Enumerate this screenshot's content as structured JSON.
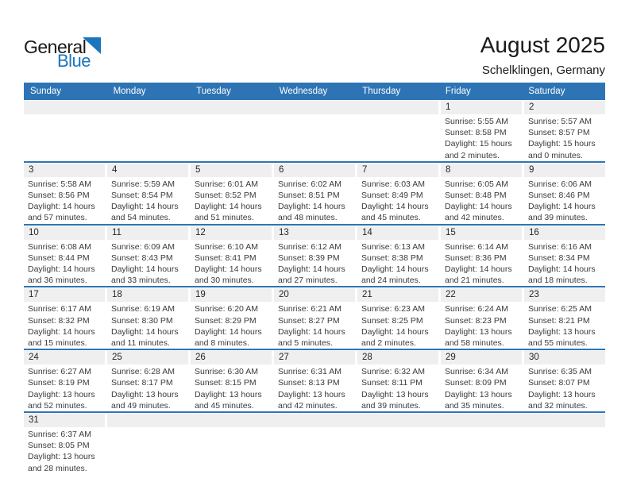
{
  "brand": {
    "part1": "General",
    "part2": "Blue"
  },
  "header": {
    "title": "August 2025",
    "subtitle": "Schelklingen, Germany"
  },
  "colors": {
    "header_bar": "#2e74b5",
    "week_divider": "#2e74b5",
    "date_band": "#efefef",
    "logo_blue": "#1b75bc"
  },
  "weekdays": [
    "Sunday",
    "Monday",
    "Tuesday",
    "Wednesday",
    "Thursday",
    "Friday",
    "Saturday"
  ],
  "weeks": [
    {
      "leading_empty": 5,
      "trailing_empty": 0,
      "days": [
        {
          "day": "1",
          "sunrise": "Sunrise: 5:55 AM",
          "sunset": "Sunset: 8:58 PM",
          "daylight1": "Daylight: 15 hours",
          "daylight2": "and 2 minutes."
        },
        {
          "day": "2",
          "sunrise": "Sunrise: 5:57 AM",
          "sunset": "Sunset: 8:57 PM",
          "daylight1": "Daylight: 15 hours",
          "daylight2": "and 0 minutes."
        }
      ]
    },
    {
      "leading_empty": 0,
      "trailing_empty": 0,
      "days": [
        {
          "day": "3",
          "sunrise": "Sunrise: 5:58 AM",
          "sunset": "Sunset: 8:56 PM",
          "daylight1": "Daylight: 14 hours",
          "daylight2": "and 57 minutes."
        },
        {
          "day": "4",
          "sunrise": "Sunrise: 5:59 AM",
          "sunset": "Sunset: 8:54 PM",
          "daylight1": "Daylight: 14 hours",
          "daylight2": "and 54 minutes."
        },
        {
          "day": "5",
          "sunrise": "Sunrise: 6:01 AM",
          "sunset": "Sunset: 8:52 PM",
          "daylight1": "Daylight: 14 hours",
          "daylight2": "and 51 minutes."
        },
        {
          "day": "6",
          "sunrise": "Sunrise: 6:02 AM",
          "sunset": "Sunset: 8:51 PM",
          "daylight1": "Daylight: 14 hours",
          "daylight2": "and 48 minutes."
        },
        {
          "day": "7",
          "sunrise": "Sunrise: 6:03 AM",
          "sunset": "Sunset: 8:49 PM",
          "daylight1": "Daylight: 14 hours",
          "daylight2": "and 45 minutes."
        },
        {
          "day": "8",
          "sunrise": "Sunrise: 6:05 AM",
          "sunset": "Sunset: 8:48 PM",
          "daylight1": "Daylight: 14 hours",
          "daylight2": "and 42 minutes."
        },
        {
          "day": "9",
          "sunrise": "Sunrise: 6:06 AM",
          "sunset": "Sunset: 8:46 PM",
          "daylight1": "Daylight: 14 hours",
          "daylight2": "and 39 minutes."
        }
      ]
    },
    {
      "leading_empty": 0,
      "trailing_empty": 0,
      "days": [
        {
          "day": "10",
          "sunrise": "Sunrise: 6:08 AM",
          "sunset": "Sunset: 8:44 PM",
          "daylight1": "Daylight: 14 hours",
          "daylight2": "and 36 minutes."
        },
        {
          "day": "11",
          "sunrise": "Sunrise: 6:09 AM",
          "sunset": "Sunset: 8:43 PM",
          "daylight1": "Daylight: 14 hours",
          "daylight2": "and 33 minutes."
        },
        {
          "day": "12",
          "sunrise": "Sunrise: 6:10 AM",
          "sunset": "Sunset: 8:41 PM",
          "daylight1": "Daylight: 14 hours",
          "daylight2": "and 30 minutes."
        },
        {
          "day": "13",
          "sunrise": "Sunrise: 6:12 AM",
          "sunset": "Sunset: 8:39 PM",
          "daylight1": "Daylight: 14 hours",
          "daylight2": "and 27 minutes."
        },
        {
          "day": "14",
          "sunrise": "Sunrise: 6:13 AM",
          "sunset": "Sunset: 8:38 PM",
          "daylight1": "Daylight: 14 hours",
          "daylight2": "and 24 minutes."
        },
        {
          "day": "15",
          "sunrise": "Sunrise: 6:14 AM",
          "sunset": "Sunset: 8:36 PM",
          "daylight1": "Daylight: 14 hours",
          "daylight2": "and 21 minutes."
        },
        {
          "day": "16",
          "sunrise": "Sunrise: 6:16 AM",
          "sunset": "Sunset: 8:34 PM",
          "daylight1": "Daylight: 14 hours",
          "daylight2": "and 18 minutes."
        }
      ]
    },
    {
      "leading_empty": 0,
      "trailing_empty": 0,
      "days": [
        {
          "day": "17",
          "sunrise": "Sunrise: 6:17 AM",
          "sunset": "Sunset: 8:32 PM",
          "daylight1": "Daylight: 14 hours",
          "daylight2": "and 15 minutes."
        },
        {
          "day": "18",
          "sunrise": "Sunrise: 6:19 AM",
          "sunset": "Sunset: 8:30 PM",
          "daylight1": "Daylight: 14 hours",
          "daylight2": "and 11 minutes."
        },
        {
          "day": "19",
          "sunrise": "Sunrise: 6:20 AM",
          "sunset": "Sunset: 8:29 PM",
          "daylight1": "Daylight: 14 hours",
          "daylight2": "and 8 minutes."
        },
        {
          "day": "20",
          "sunrise": "Sunrise: 6:21 AM",
          "sunset": "Sunset: 8:27 PM",
          "daylight1": "Daylight: 14 hours",
          "daylight2": "and 5 minutes."
        },
        {
          "day": "21",
          "sunrise": "Sunrise: 6:23 AM",
          "sunset": "Sunset: 8:25 PM",
          "daylight1": "Daylight: 14 hours",
          "daylight2": "and 2 minutes."
        },
        {
          "day": "22",
          "sunrise": "Sunrise: 6:24 AM",
          "sunset": "Sunset: 8:23 PM",
          "daylight1": "Daylight: 13 hours",
          "daylight2": "and 58 minutes."
        },
        {
          "day": "23",
          "sunrise": "Sunrise: 6:25 AM",
          "sunset": "Sunset: 8:21 PM",
          "daylight1": "Daylight: 13 hours",
          "daylight2": "and 55 minutes."
        }
      ]
    },
    {
      "leading_empty": 0,
      "trailing_empty": 0,
      "days": [
        {
          "day": "24",
          "sunrise": "Sunrise: 6:27 AM",
          "sunset": "Sunset: 8:19 PM",
          "daylight1": "Daylight: 13 hours",
          "daylight2": "and 52 minutes."
        },
        {
          "day": "25",
          "sunrise": "Sunrise: 6:28 AM",
          "sunset": "Sunset: 8:17 PM",
          "daylight1": "Daylight: 13 hours",
          "daylight2": "and 49 minutes."
        },
        {
          "day": "26",
          "sunrise": "Sunrise: 6:30 AM",
          "sunset": "Sunset: 8:15 PM",
          "daylight1": "Daylight: 13 hours",
          "daylight2": "and 45 minutes."
        },
        {
          "day": "27",
          "sunrise": "Sunrise: 6:31 AM",
          "sunset": "Sunset: 8:13 PM",
          "daylight1": "Daylight: 13 hours",
          "daylight2": "and 42 minutes."
        },
        {
          "day": "28",
          "sunrise": "Sunrise: 6:32 AM",
          "sunset": "Sunset: 8:11 PM",
          "daylight1": "Daylight: 13 hours",
          "daylight2": "and 39 minutes."
        },
        {
          "day": "29",
          "sunrise": "Sunrise: 6:34 AM",
          "sunset": "Sunset: 8:09 PM",
          "daylight1": "Daylight: 13 hours",
          "daylight2": "and 35 minutes."
        },
        {
          "day": "30",
          "sunrise": "Sunrise: 6:35 AM",
          "sunset": "Sunset: 8:07 PM",
          "daylight1": "Daylight: 13 hours",
          "daylight2": "and 32 minutes."
        }
      ]
    },
    {
      "leading_empty": 0,
      "trailing_empty": 6,
      "days": [
        {
          "day": "31",
          "sunrise": "Sunrise: 6:37 AM",
          "sunset": "Sunset: 8:05 PM",
          "daylight1": "Daylight: 13 hours",
          "daylight2": "and 28 minutes."
        }
      ]
    }
  ]
}
